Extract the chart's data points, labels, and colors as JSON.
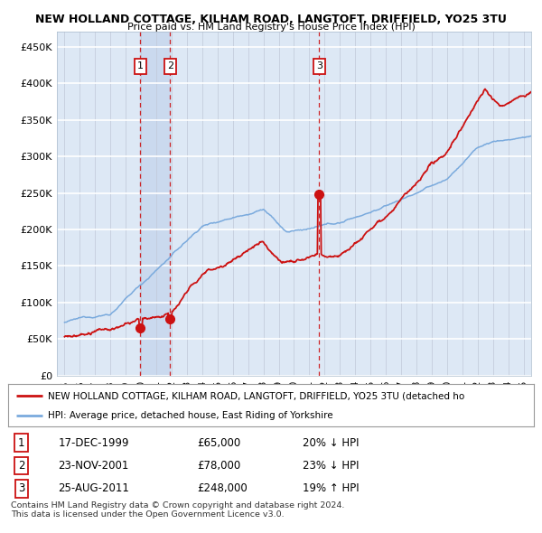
{
  "title": "NEW HOLLAND COTTAGE, KILHAM ROAD, LANGTOFT, DRIFFIELD, YO25 3TU",
  "subtitle": "Price paid vs. HM Land Registry's House Price Index (HPI)",
  "ylabel_ticks": [
    "£0",
    "£50K",
    "£100K",
    "£150K",
    "£200K",
    "£250K",
    "£300K",
    "£350K",
    "£400K",
    "£450K"
  ],
  "ytick_values": [
    0,
    50000,
    100000,
    150000,
    200000,
    250000,
    300000,
    350000,
    400000,
    450000
  ],
  "ylim": [
    0,
    470000
  ],
  "xlim_start": 1994.5,
  "xlim_end": 2025.5,
  "background_color": "#dde8f5",
  "plot_bg_color": "#dde8f5",
  "hpi_color": "#7aaadd",
  "price_color": "#cc1111",
  "dashed_line_color": "#cc1111",
  "shade_color": "#c8d8ee",
  "sale_points": [
    {
      "year": 1999.96,
      "price": 65000,
      "label": "1"
    },
    {
      "year": 2001.9,
      "price": 78000,
      "label": "2"
    },
    {
      "year": 2011.65,
      "price": 248000,
      "label": "3"
    }
  ],
  "legend_entries": [
    "NEW HOLLAND COTTAGE, KILHAM ROAD, LANGTOFT, DRIFFIELD, YO25 3TU (detached ho",
    "HPI: Average price, detached house, East Riding of Yorkshire"
  ],
  "table_rows": [
    {
      "num": "1",
      "date": "17-DEC-1999",
      "price": "£65,000",
      "hpi": "20% ↓ HPI"
    },
    {
      "num": "2",
      "date": "23-NOV-2001",
      "price": "£78,000",
      "hpi": "23% ↓ HPI"
    },
    {
      "num": "3",
      "date": "25-AUG-2011",
      "price": "£248,000",
      "hpi": "19% ↑ HPI"
    }
  ],
  "footer": "Contains HM Land Registry data © Crown copyright and database right 2024.\nThis data is licensed under the Open Government Licence v3.0."
}
